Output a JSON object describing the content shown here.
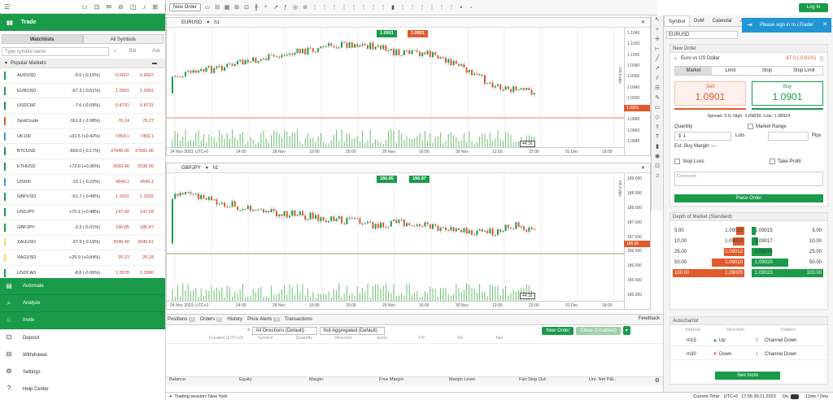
{
  "left": {
    "section": "Trade",
    "tabs": [
      "Watchlists",
      "All Symbols"
    ],
    "search_placeholder": "Type symbol name",
    "col_bid": "Bid",
    "col_ask": "Ask",
    "group": "Popular Markets",
    "symbols": [
      {
        "name": "AUDUSD",
        "change": "-9.6 (-0.15%)",
        "bid": "0.6607",
        "ask": "0.6607",
        "color": "#1a9b4a",
        "dir": "red"
      },
      {
        "name": "EURUSD",
        "change": "-67.3 (-0.61%)",
        "bid": "1.0901",
        "ask": "1.0901",
        "color": "#1a9b4a",
        "dir": "red"
      },
      {
        "name": "USDCHF",
        "change": "-7.6 (-0.09%)",
        "bid": "0.8731",
        "ask": "0.8731",
        "color": "#1a9b4a",
        "dir": "red"
      },
      {
        "name": "SpotCrude",
        "change": "-161.6 (-2.08%)",
        "bid": "76.24",
        "ask": "76.27",
        "color": "#e15a2c",
        "dir": "green"
      },
      {
        "name": "UK100",
        "change": "+31.5 (+0.42%)",
        "bid": "7454.1",
        "ask": "7456.1",
        "color": "#3aa0e0",
        "dir": "red"
      },
      {
        "name": "BTCUSD",
        "change": "-650.0 (-0.17%)",
        "bid": "37640.00",
        "ask": "37681.00",
        "color": "#1a9b4a",
        "dir": "red"
      },
      {
        "name": "ETHUSD",
        "change": "+72.0 (+0.36%)",
        "bid": "2033.40",
        "ask": "2036.50",
        "color": "#1a9b4a",
        "dir": "green"
      },
      {
        "name": "US500",
        "change": "-10.1 (-0.22%)",
        "bid": "4544.1",
        "ask": "4545.1",
        "color": "#3aa0e0",
        "dir": "red"
      },
      {
        "name": "GBPUSD",
        "change": "-61.7 (-0.49%)",
        "bid": "1.2631",
        "ask": "1.2632",
        "color": "#1a9b4a",
        "dir": "red"
      },
      {
        "name": "USDJPY",
        "change": "+70.1 (+0.48%)",
        "bid": "147.92",
        "ask": "147.93",
        "color": "#1a9b4a",
        "dir": "green"
      },
      {
        "name": "GBPJPY",
        "change": "-2.3 (-0.01%)",
        "bid": "186.85",
        "ask": "186.87",
        "color": "#1a9b4a",
        "dir": "green"
      },
      {
        "name": "XAUUSD",
        "change": "-37.9 (-0.19%)",
        "bid": "2040.40",
        "ask": "2040.51",
        "color": "#f0e060",
        "dir": "green"
      },
      {
        "name": "XAGUSD",
        "change": "+20.9 (+0.84%)",
        "bid": "25.21",
        "ask": "25.24",
        "color": "#f0e060",
        "dir": "red"
      },
      {
        "name": "USDCAD",
        "change": "-8.8 (-0.06%)",
        "bid": "1.3578",
        "ask": "1.3580",
        "color": "#1a9b4a",
        "dir": "red"
      }
    ],
    "menu": [
      "Automate",
      "Analyze",
      "Invite",
      "Deposit",
      "Withdrawal",
      "Settings",
      "Help Center"
    ]
  },
  "toolbar": {
    "new_order": "New Order"
  },
  "chart1": {
    "symbol": "EURUSD",
    "timeframe": "h1",
    "bid_pill": "1.0901",
    "ask_pill": "1.0901",
    "price_label": "1.0901",
    "yticks": [
      "1.1040",
      "1.1020",
      "1.1000",
      "1.0980",
      "1.0960",
      "1.0940",
      "1.0920",
      "1.0900",
      "1.0880",
      "1.0860",
      "1.0840"
    ],
    "xticks": [
      "24 Nov 2023, UTC+0",
      "14:00",
      "28 Nov",
      "10:00",
      "20:00",
      "29 Nov",
      "16:00",
      "30 Nov",
      "12:00",
      "22:00",
      "01 Dec",
      "18:00"
    ],
    "pips": "100.0 pips",
    "timer": "44:16"
  },
  "chart2": {
    "symbol": "GBPJPY",
    "timeframe": "h1",
    "bid_pill": "186.85",
    "ask_pill": "186.87",
    "price_label": "186.85",
    "yticks": [
      "189.000",
      "188.500",
      "188.000",
      "187.500",
      "187.000",
      "186.500",
      "186.000",
      "185.500",
      "185.000"
    ],
    "xticks": [
      "24 Nov 2023, UTC+0",
      "14:00",
      "28 Nov",
      "10:00",
      "20:00",
      "29 Nov",
      "16:00",
      "30 Nov",
      "12:00",
      "22:00",
      "01 Dec",
      "18:00"
    ],
    "pips": "100.0 pips",
    "timer": "44:16"
  },
  "bottom": {
    "tabs": [
      {
        "label": "Positions",
        "count": "0"
      },
      {
        "label": "Orders",
        "count": "0"
      },
      {
        "label": "History",
        "count": ""
      },
      {
        "label": "Price Alerts",
        "count": "0"
      },
      {
        "label": "Transactions",
        "count": ""
      }
    ],
    "feedback": "Feedback",
    "filter1": "All Directions (Default)",
    "filter2": "Not Aggregated (Default)",
    "new_order": "New Order",
    "close": "Close (Disabled)",
    "cols": [
      "Created (UTC+0)",
      "Symbol",
      "Quantity",
      "Direction",
      "Entry",
      "T/P",
      "S/L",
      "Net"
    ],
    "summary": [
      "Balance:",
      "Equity:",
      "Margin:",
      "Free Margin:",
      "Margin Level:",
      "Fair Stop Out:",
      "Unr. Net P&L:"
    ]
  },
  "status": {
    "session": "Trading session: New York",
    "time_label": "Current Time:",
    "tz": "UTC+0",
    "time": "17:55 30.11.2023",
    "on": "On",
    "latency": "11ms / 2ms"
  },
  "right": {
    "tabs": [
      "Symbol",
      "DoM",
      "Calendar",
      "Autoc"
    ],
    "symbol": "EURUSD",
    "new_order": "New Order",
    "pair": "Euro vs US Dollar",
    "pair_change": "-67.3 (-0.61%)",
    "order_types": [
      "Market",
      "Limit",
      "Stop",
      "Stop Limit"
    ],
    "sell": "Sell",
    "sell_price": "1.0901",
    "buy": "Buy",
    "buy_price": "1.0901",
    "spread": "Spread: 0.0, High: 1.09839, Low: 1.08924",
    "quantity": "Quantity",
    "market_range": "Market Range",
    "qty_value": "1",
    "lots": "Lots",
    "pips": "Pips",
    "est_margin": "Est. Buy Margin: —",
    "stop_loss": "Stop Loss",
    "take_profit": "Take Profit",
    "comment": "Comment",
    "place": "Place Order",
    "dom_title": "Depth of Market (Standard)",
    "dom_left": [
      [
        "5.00",
        "1.09015"
      ],
      [
        "10.00",
        "1.09013"
      ],
      [
        "25.00",
        "1.09012"
      ],
      [
        "50.00",
        "1.09010"
      ],
      [
        "100.00",
        "1.09009"
      ]
    ],
    "dom_right": [
      [
        "1.09015",
        "5.00"
      ],
      [
        "1.09017",
        "10.00"
      ],
      [
        "1.09018",
        "25.00"
      ],
      [
        "1.09020",
        "50.00"
      ],
      [
        "1.09023",
        "100.00"
      ]
    ],
    "ac_title": "Autochartist",
    "ac_cols": [
      "Interval",
      "Direction",
      "Pattern"
    ],
    "ac_rows": [
      [
        "m15",
        "Up",
        "Channel Down"
      ],
      [
        "m30",
        "Down",
        "Channel Down"
      ]
    ],
    "see_more": "See more"
  },
  "signin": "Please sign in to cTrader",
  "login": "Log In"
}
